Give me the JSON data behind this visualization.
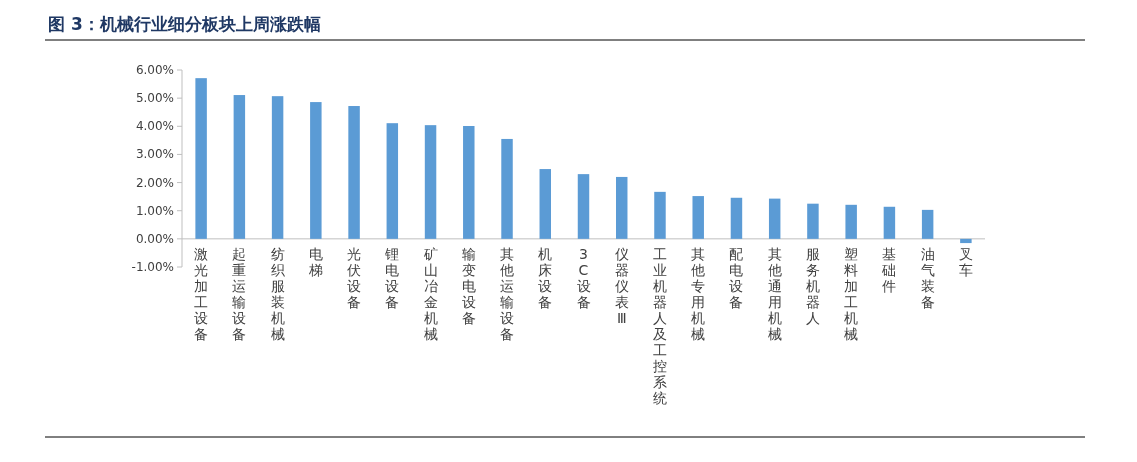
{
  "chart_data": {
    "type": "bar",
    "title": "图 3：机械行业细分板块上周涨跌幅",
    "categories": [
      "激光加工设备",
      "起重运输设备",
      "纺织服装机械",
      "电梯",
      "光伏设备",
      "锂电设备",
      "矿山冶金机械",
      "输变电设备",
      "其他运输设备",
      "机床设备",
      "3C设备",
      "仪器仪表Ⅲ",
      "工业机器人及工控系统",
      "其他专用机械",
      "配电设备",
      "其他通用机械",
      "服务机器人",
      "塑料加工机械",
      "基础件",
      "油气装备",
      "叉车"
    ],
    "values": [
      5.71,
      5.11,
      5.07,
      4.86,
      4.72,
      4.11,
      4.04,
      4.01,
      3.55,
      2.48,
      2.3,
      2.2,
      1.67,
      1.52,
      1.46,
      1.43,
      1.25,
      1.21,
      1.14,
      1.03,
      -0.15
    ],
    "color": "#5b9bd5",
    "ylim": [
      -1,
      6
    ],
    "yticks": [
      {
        "value": -1,
        "label": "-1.00%"
      },
      {
        "value": 0,
        "label": "0.00%"
      },
      {
        "value": 1,
        "label": "1.00%"
      },
      {
        "value": 2,
        "label": "2.00%"
      },
      {
        "value": 3,
        "label": "3.00%"
      },
      {
        "value": 4,
        "label": "4.00%"
      },
      {
        "value": 5,
        "label": "5.00%"
      },
      {
        "value": 6,
        "label": "6.00%"
      }
    ],
    "grid": false
  }
}
